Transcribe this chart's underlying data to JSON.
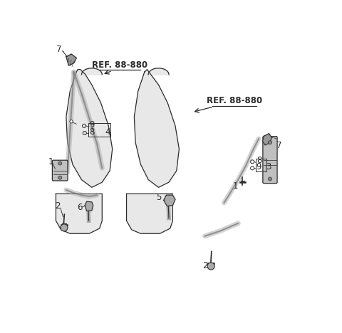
{
  "bg_color": "#ffffff",
  "line_color": "#2a2a2a",
  "seat_fill": "#e8e8e8",
  "belt_color": "#888888",
  "ref_label": "REF. 88-880",
  "ref_fontsize": 8.5,
  "label_fontsize": 8.5,
  "figsize": [
    4.8,
    4.68
  ],
  "dpi": 100,
  "left_seat_back": {
    "x": [
      0.115,
      0.09,
      0.075,
      0.08,
      0.1,
      0.135,
      0.175,
      0.215,
      0.245,
      0.255,
      0.24,
      0.21,
      0.175,
      0.15,
      0.13,
      0.12,
      0.115
    ],
    "y": [
      0.875,
      0.8,
      0.7,
      0.6,
      0.515,
      0.455,
      0.425,
      0.445,
      0.49,
      0.575,
      0.665,
      0.755,
      0.825,
      0.865,
      0.885,
      0.885,
      0.875
    ]
  },
  "left_seat_cushion": {
    "x": [
      0.035,
      0.035,
      0.055,
      0.09,
      0.165,
      0.205,
      0.215,
      0.215,
      0.055,
      0.035
    ],
    "y": [
      0.4,
      0.295,
      0.26,
      0.245,
      0.245,
      0.265,
      0.295,
      0.4,
      0.4,
      0.4
    ]
  },
  "center_seat_back": {
    "x": [
      0.38,
      0.355,
      0.34,
      0.345,
      0.365,
      0.395,
      0.435,
      0.475,
      0.505,
      0.515,
      0.5,
      0.47,
      0.435,
      0.405,
      0.39,
      0.38
    ],
    "y": [
      0.875,
      0.8,
      0.7,
      0.6,
      0.515,
      0.455,
      0.425,
      0.445,
      0.49,
      0.575,
      0.665,
      0.755,
      0.825,
      0.865,
      0.885,
      0.875
    ]
  },
  "center_seat_cushion": {
    "x": [
      0.31,
      0.31,
      0.33,
      0.365,
      0.44,
      0.48,
      0.49,
      0.49,
      0.33,
      0.31
    ],
    "y": [
      0.4,
      0.295,
      0.26,
      0.245,
      0.245,
      0.265,
      0.295,
      0.4,
      0.4,
      0.4
    ]
  },
  "left_belt_shoulder": {
    "x": [
      0.105,
      0.1,
      0.095,
      0.09,
      0.085,
      0.08
    ],
    "y": [
      0.875,
      0.8,
      0.72,
      0.64,
      0.56,
      0.485
    ]
  },
  "left_belt_diagonal": {
    "x": [
      0.105,
      0.135,
      0.165,
      0.195,
      0.215
    ],
    "y": [
      0.875,
      0.79,
      0.695,
      0.595,
      0.5
    ]
  },
  "left_belt_lap": {
    "x": [
      0.075,
      0.1,
      0.135,
      0.165,
      0.195
    ],
    "y": [
      0.415,
      0.405,
      0.395,
      0.39,
      0.395
    ]
  },
  "right_belt_shoulder": {
    "x": [
      0.825,
      0.8,
      0.775,
      0.745,
      0.715,
      0.69
    ],
    "y": [
      0.615,
      0.565,
      0.51,
      0.455,
      0.405,
      0.365
    ]
  },
  "right_belt_lap": {
    "x": [
      0.615,
      0.645,
      0.675,
      0.71,
      0.745
    ],
    "y": [
      0.235,
      0.245,
      0.255,
      0.27,
      0.285
    ]
  }
}
